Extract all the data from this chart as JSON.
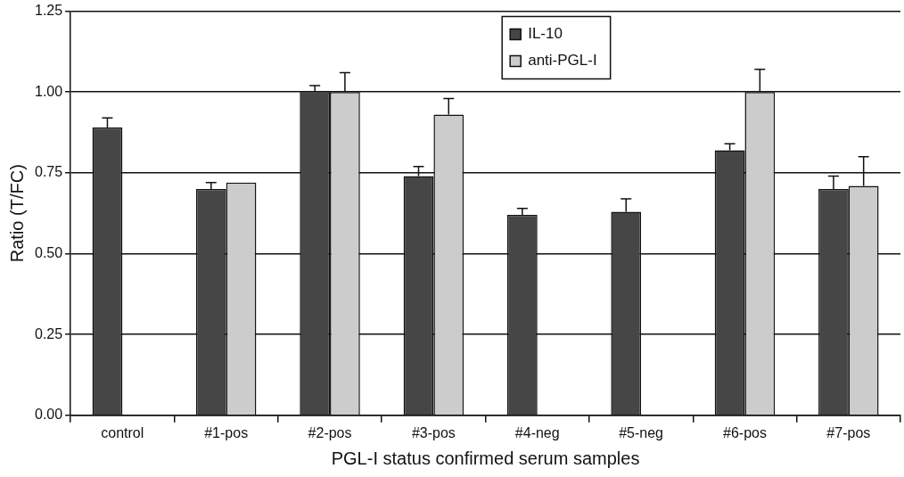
{
  "chart_data": {
    "type": "bar",
    "xlabel": "PGL-I status confirmed serum samples",
    "ylabel": "Ratio (T/FC)",
    "categories": [
      "control",
      "#1-pos",
      "#2-pos",
      "#3-pos",
      "#4-neg",
      "#5-neg",
      "#6-pos",
      "#7-pos"
    ],
    "series": [
      {
        "name": "IL-10",
        "color": "#464646",
        "values": [
          0.89,
          0.7,
          1.0,
          0.74,
          0.62,
          0.63,
          0.82,
          0.7
        ],
        "errors": [
          [
            0.89,
            0.92
          ],
          [
            0.7,
            0.72
          ],
          [
            1.0,
            1.02
          ],
          [
            0.74,
            0.77
          ],
          [
            0.62,
            0.64
          ],
          [
            0.63,
            0.67
          ],
          [
            0.82,
            0.84
          ],
          [
            0.7,
            0.74
          ]
        ]
      },
      {
        "name": "anti-PGL-I",
        "color": "#cccccc",
        "values": [
          null,
          0.72,
          1.0,
          0.93,
          null,
          null,
          1.0,
          0.71
        ],
        "errors": [
          null,
          null,
          [
            1.0,
            1.06
          ],
          [
            0.93,
            0.98
          ],
          null,
          null,
          [
            1.0,
            1.07
          ],
          [
            0.71,
            0.8
          ]
        ]
      }
    ],
    "ylim": [
      0,
      1.25
    ],
    "yticks": [
      {
        "value": 0,
        "label": "0.00"
      },
      {
        "value": 0.25,
        "label": "0.25"
      },
      {
        "value": 0.5,
        "label": "0.50"
      },
      {
        "value": 0.75,
        "label": "0.75"
      },
      {
        "value": 1,
        "label": "1.00"
      },
      {
        "value": 1.25,
        "label": "1.25"
      }
    ],
    "grid": "y",
    "legend": "top"
  }
}
